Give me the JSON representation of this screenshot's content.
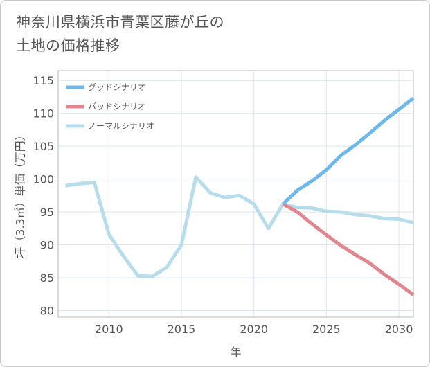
{
  "chart_data": {
    "type": "line",
    "title_line1": "神奈川県横浜市青葉区藤が丘の",
    "title_line2": "土地の価格推移",
    "xlabel": "年",
    "ylabel": "坪（3.3㎡）単価（万円）",
    "xlim": [
      2006.5,
      2031
    ],
    "ylim": [
      79,
      116.5
    ],
    "xticks": [
      2010,
      2015,
      2020,
      2025,
      2030
    ],
    "yticks": [
      80,
      85,
      90,
      95,
      100,
      105,
      110,
      115
    ],
    "series": [
      {
        "name": "グッドシナリオ",
        "color": "#6db8ea",
        "x": [
          2022,
          2023,
          2024,
          2025,
          2026,
          2027,
          2028,
          2029,
          2030,
          2031
        ],
        "y": [
          96.2,
          98.3,
          99.7,
          101.4,
          103.6,
          105.2,
          107.0,
          108.9,
          110.6,
          112.3
        ]
      },
      {
        "name": "バッドシナリオ",
        "color": "#e0868f",
        "x": [
          2022,
          2023,
          2024,
          2025,
          2026,
          2027,
          2028,
          2029,
          2030,
          2031
        ],
        "y": [
          96.2,
          95.0,
          93.2,
          91.5,
          89.9,
          88.5,
          87.2,
          85.5,
          84.0,
          82.4
        ]
      },
      {
        "name": "ノーマルシナリオ",
        "color": "#b7dcec",
        "x": [
          2007,
          2008,
          2009,
          2010,
          2011,
          2012,
          2013,
          2014,
          2015,
          2016,
          2017,
          2018,
          2019,
          2020,
          2021,
          2022,
          2023,
          2024,
          2025,
          2026,
          2027,
          2028,
          2029,
          2030,
          2031
        ],
        "y": [
          99.0,
          99.3,
          99.5,
          91.6,
          88.3,
          85.3,
          85.2,
          86.6,
          90.0,
          100.3,
          97.9,
          97.2,
          97.5,
          96.2,
          92.5,
          96.2,
          95.7,
          95.6,
          95.1,
          95.0,
          94.6,
          94.4,
          94.0,
          93.9,
          93.4
        ]
      }
    ],
    "legend_position": "top-left"
  }
}
